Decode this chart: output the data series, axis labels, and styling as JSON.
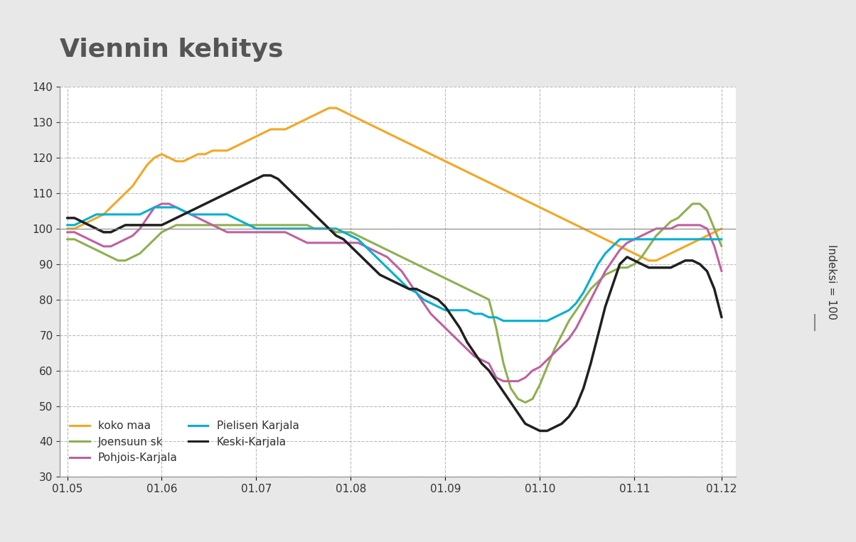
{
  "title": "Viennin kehitys",
  "title_color": "#555555",
  "background_color": "#e8e8e8",
  "plot_background": "#ffffff",
  "ylabel_right": "Indeksi = 100",
  "ylim": [
    30,
    140
  ],
  "yticks": [
    30,
    40,
    50,
    60,
    70,
    80,
    90,
    100,
    110,
    120,
    130,
    140
  ],
  "x_labels": [
    "01.05",
    "01.06",
    "01.07",
    "01.08",
    "01.09",
    "01.10",
    "01.11",
    "01.12"
  ],
  "series": {
    "koko_maa": {
      "label": "koko maa",
      "color": "#f5a623",
      "linewidth": 2.2,
      "data_x": [
        0,
        1,
        2,
        3,
        4,
        5,
        6,
        7,
        8,
        9,
        10,
        11,
        12,
        13,
        14,
        15,
        16,
        17,
        18,
        19,
        20,
        21,
        22,
        23,
        24,
        25,
        26,
        27,
        28,
        29,
        30,
        31,
        32,
        33,
        34,
        35,
        36,
        37,
        38,
        39,
        40,
        41,
        42,
        43,
        44,
        45,
        46,
        47,
        48,
        49,
        50,
        51,
        52,
        53,
        54,
        55,
        56,
        57,
        58,
        59,
        60,
        61,
        62,
        63,
        64,
        65,
        66,
        67,
        68,
        69,
        70,
        71,
        72,
        73,
        74,
        75,
        76,
        77,
        78,
        79,
        80,
        81,
        82,
        83,
        84,
        85,
        86,
        87,
        88,
        89,
        90
      ],
      "data_y": [
        100,
        100,
        101,
        102,
        103,
        104,
        106,
        108,
        110,
        112,
        115,
        118,
        120,
        121,
        120,
        119,
        119,
        120,
        121,
        121,
        122,
        122,
        122,
        123,
        124,
        125,
        126,
        127,
        128,
        128,
        128,
        129,
        130,
        131,
        132,
        133,
        134,
        134,
        133,
        132,
        131,
        130,
        129,
        128,
        127,
        126,
        125,
        124,
        123,
        122,
        121,
        120,
        119,
        118,
        117,
        116,
        115,
        114,
        113,
        112,
        111,
        110,
        109,
        108,
        107,
        106,
        105,
        104,
        103,
        102,
        101,
        100,
        99,
        98,
        97,
        96,
        95,
        94,
        93,
        92,
        91,
        91,
        92,
        93,
        94,
        95,
        96,
        97,
        98,
        99,
        100
      ]
    },
    "joensuun_sk": {
      "label": "Joensuun sk",
      "color": "#8db050",
      "linewidth": 2.2,
      "data_x": [
        0,
        1,
        2,
        3,
        4,
        5,
        6,
        7,
        8,
        9,
        10,
        11,
        12,
        13,
        14,
        15,
        16,
        17,
        18,
        19,
        20,
        21,
        22,
        23,
        24,
        25,
        26,
        27,
        28,
        29,
        30,
        31,
        32,
        33,
        34,
        35,
        36,
        37,
        38,
        39,
        40,
        41,
        42,
        43,
        44,
        45,
        46,
        47,
        48,
        49,
        50,
        51,
        52,
        53,
        54,
        55,
        56,
        57,
        58,
        59,
        60,
        61,
        62,
        63,
        64,
        65,
        66,
        67,
        68,
        69,
        70,
        71,
        72,
        73,
        74,
        75,
        76,
        77,
        78,
        79,
        80,
        81,
        82,
        83,
        84,
        85,
        86,
        87,
        88,
        89,
        90
      ],
      "data_y": [
        97,
        97,
        96,
        95,
        94,
        93,
        92,
        91,
        91,
        92,
        93,
        95,
        97,
        99,
        100,
        101,
        101,
        101,
        101,
        101,
        101,
        101,
        101,
        101,
        101,
        101,
        101,
        101,
        101,
        101,
        101,
        101,
        101,
        101,
        100,
        100,
        100,
        99,
        99,
        99,
        98,
        97,
        96,
        95,
        94,
        93,
        92,
        91,
        90,
        89,
        88,
        87,
        86,
        85,
        84,
        83,
        82,
        81,
        80,
        72,
        62,
        55,
        52,
        51,
        52,
        56,
        61,
        66,
        70,
        74,
        77,
        80,
        83,
        85,
        87,
        88,
        89,
        89,
        90,
        92,
        95,
        98,
        100,
        102,
        103,
        105,
        107,
        107,
        105,
        100,
        95
      ]
    },
    "pohjois_karjala": {
      "label": "Pohjois-Karjala",
      "color": "#c060a0",
      "linewidth": 2.2,
      "data_x": [
        0,
        1,
        2,
        3,
        4,
        5,
        6,
        7,
        8,
        9,
        10,
        11,
        12,
        13,
        14,
        15,
        16,
        17,
        18,
        19,
        20,
        21,
        22,
        23,
        24,
        25,
        26,
        27,
        28,
        29,
        30,
        31,
        32,
        33,
        34,
        35,
        36,
        37,
        38,
        39,
        40,
        41,
        42,
        43,
        44,
        45,
        46,
        47,
        48,
        49,
        50,
        51,
        52,
        53,
        54,
        55,
        56,
        57,
        58,
        59,
        60,
        61,
        62,
        63,
        64,
        65,
        66,
        67,
        68,
        69,
        70,
        71,
        72,
        73,
        74,
        75,
        76,
        77,
        78,
        79,
        80,
        81,
        82,
        83,
        84,
        85,
        86,
        87,
        88,
        89,
        90
      ],
      "data_y": [
        99,
        99,
        98,
        97,
        96,
        95,
        95,
        96,
        97,
        98,
        100,
        103,
        106,
        107,
        107,
        106,
        105,
        104,
        103,
        102,
        101,
        100,
        99,
        99,
        99,
        99,
        99,
        99,
        99,
        99,
        99,
        98,
        97,
        96,
        96,
        96,
        96,
        96,
        96,
        96,
        96,
        95,
        94,
        93,
        92,
        90,
        88,
        85,
        82,
        79,
        76,
        74,
        72,
        70,
        68,
        66,
        64,
        63,
        62,
        58,
        57,
        57,
        57,
        58,
        60,
        61,
        63,
        65,
        67,
        69,
        72,
        76,
        80,
        84,
        88,
        91,
        94,
        96,
        97,
        98,
        99,
        100,
        100,
        100,
        101,
        101,
        101,
        101,
        100,
        95,
        88
      ]
    },
    "pielisen_karjala": {
      "label": "Pielisen Karjala",
      "color": "#00b0d0",
      "linewidth": 2.2,
      "data_x": [
        0,
        1,
        2,
        3,
        4,
        5,
        6,
        7,
        8,
        9,
        10,
        11,
        12,
        13,
        14,
        15,
        16,
        17,
        18,
        19,
        20,
        21,
        22,
        23,
        24,
        25,
        26,
        27,
        28,
        29,
        30,
        31,
        32,
        33,
        34,
        35,
        36,
        37,
        38,
        39,
        40,
        41,
        42,
        43,
        44,
        45,
        46,
        47,
        48,
        49,
        50,
        51,
        52,
        53,
        54,
        55,
        56,
        57,
        58,
        59,
        60,
        61,
        62,
        63,
        64,
        65,
        66,
        67,
        68,
        69,
        70,
        71,
        72,
        73,
        74,
        75,
        76,
        77,
        78,
        79,
        80,
        81,
        82,
        83,
        84,
        85,
        86,
        87,
        88,
        89,
        90
      ],
      "data_y": [
        101,
        101,
        102,
        103,
        104,
        104,
        104,
        104,
        104,
        104,
        104,
        105,
        106,
        106,
        106,
        106,
        105,
        104,
        104,
        104,
        104,
        104,
        104,
        103,
        102,
        101,
        100,
        100,
        100,
        100,
        100,
        100,
        100,
        100,
        100,
        100,
        100,
        100,
        99,
        98,
        97,
        95,
        93,
        91,
        89,
        87,
        85,
        83,
        82,
        80,
        79,
        78,
        77,
        77,
        77,
        77,
        76,
        76,
        75,
        75,
        74,
        74,
        74,
        74,
        74,
        74,
        74,
        75,
        76,
        77,
        79,
        82,
        86,
        90,
        93,
        95,
        97,
        97,
        97,
        97,
        97,
        97,
        97,
        97,
        97,
        97,
        97,
        97,
        97,
        97,
        97
      ]
    },
    "keski_karjala": {
      "label": "Keski-Karjala",
      "color": "#202020",
      "linewidth": 2.5,
      "data_x": [
        0,
        1,
        2,
        3,
        4,
        5,
        6,
        7,
        8,
        9,
        10,
        11,
        12,
        13,
        14,
        15,
        16,
        17,
        18,
        19,
        20,
        21,
        22,
        23,
        24,
        25,
        26,
        27,
        28,
        29,
        30,
        31,
        32,
        33,
        34,
        35,
        36,
        37,
        38,
        39,
        40,
        41,
        42,
        43,
        44,
        45,
        46,
        47,
        48,
        49,
        50,
        51,
        52,
        53,
        54,
        55,
        56,
        57,
        58,
        59,
        60,
        61,
        62,
        63,
        64,
        65,
        66,
        67,
        68,
        69,
        70,
        71,
        72,
        73,
        74,
        75,
        76,
        77,
        78,
        79,
        80,
        81,
        82,
        83,
        84,
        85,
        86,
        87,
        88,
        89,
        90
      ],
      "data_y": [
        103,
        103,
        102,
        101,
        100,
        99,
        99,
        100,
        101,
        101,
        101,
        101,
        101,
        101,
        102,
        103,
        104,
        105,
        106,
        107,
        108,
        109,
        110,
        111,
        112,
        113,
        114,
        115,
        115,
        114,
        112,
        110,
        108,
        106,
        104,
        102,
        100,
        98,
        97,
        95,
        93,
        91,
        89,
        87,
        86,
        85,
        84,
        83,
        83,
        82,
        81,
        80,
        78,
        75,
        72,
        68,
        65,
        62,
        60,
        57,
        54,
        51,
        48,
        45,
        44,
        43,
        43,
        44,
        45,
        47,
        50,
        55,
        62,
        70,
        78,
        84,
        90,
        92,
        91,
        90,
        89,
        89,
        89,
        89,
        90,
        91,
        91,
        90,
        88,
        83,
        75
      ]
    }
  },
  "legend": {
    "koko_maa": "koko maa",
    "joensuun_sk": "Joensuun sk",
    "pohjois_karjala": "Pohjois-Karjala",
    "pielisen_karjala": "Pielisen Karjala",
    "keski_karjala": "Keski-Karjala"
  }
}
